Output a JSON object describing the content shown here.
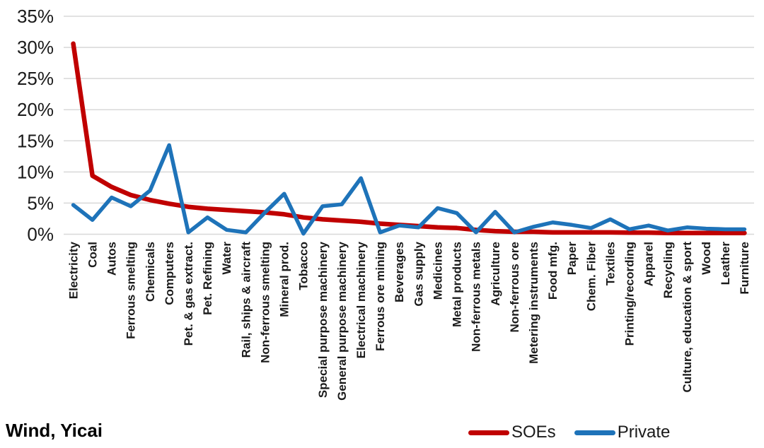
{
  "source_label": "Wind, Yicai",
  "legend": {
    "soes_label": "SOEs",
    "private_label": "Private"
  },
  "chart_data": {
    "type": "line",
    "title": "",
    "xlabel": "",
    "ylabel": "",
    "categories": [
      "Electricity",
      "Coal",
      "Autos",
      "Ferrous smelting",
      "Chemicals",
      "Computers",
      "Pet. & gas extract.",
      "Pet. Refining",
      "Water",
      "Rail, ships & aircraft",
      "Non-ferrous smelting",
      "Mineral prod.",
      "Tobacco",
      "Special purpose machinery",
      "General purpose machinery",
      "Electrical machinery",
      "Ferrous ore mining",
      "Beverages",
      "Gas supply",
      "Medicines",
      "Metal products",
      "Non-ferrous metals",
      "Agriculture",
      "Non-ferrous ore",
      "Metering instruments",
      "Food mfg.",
      "Paper",
      "Chem. Fiber",
      "Textiles",
      "Printing/recording",
      "Apparel",
      "Recycling",
      "Culture, education & sport",
      "Wood",
      "Leather",
      "Furniture"
    ],
    "series": [
      {
        "name": "SOEs",
        "color": "#C00000",
        "values": [
          30.6,
          9.4,
          7.6,
          6.3,
          5.5,
          4.9,
          4.4,
          4.1,
          3.9,
          3.7,
          3.5,
          3.2,
          2.7,
          2.4,
          2.2,
          2.0,
          1.7,
          1.5,
          1.3,
          1.1,
          1.0,
          0.7,
          0.5,
          0.4,
          0.4,
          0.3,
          0.3,
          0.3,
          0.3,
          0.25,
          0.25,
          0.2,
          0.2,
          0.2,
          0.2,
          0.2
        ]
      },
      {
        "name": "Private",
        "color": "#1E73B9",
        "values": [
          4.7,
          2.3,
          5.9,
          4.5,
          7.0,
          14.3,
          0.3,
          2.7,
          0.7,
          0.3,
          3.5,
          6.5,
          0.1,
          4.5,
          4.8,
          9.0,
          0.3,
          1.4,
          1.1,
          4.2,
          3.4,
          0.3,
          3.6,
          0.3,
          1.2,
          1.9,
          1.5,
          1.0,
          2.4,
          0.8,
          1.4,
          0.6,
          1.1,
          0.9,
          0.8,
          0.8
        ]
      }
    ],
    "ylim": [
      0,
      35
    ],
    "yticks": [
      0,
      5,
      10,
      15,
      20,
      25,
      30,
      35
    ],
    "ytick_labels": [
      "0%",
      "5%",
      "10%",
      "15%",
      "20%",
      "25%",
      "30%",
      "35%"
    ],
    "grid": "horizontal-only",
    "gridline_color": "#D8D8D8",
    "legend_position": "bottom-right",
    "x_label_rotation": -90
  }
}
